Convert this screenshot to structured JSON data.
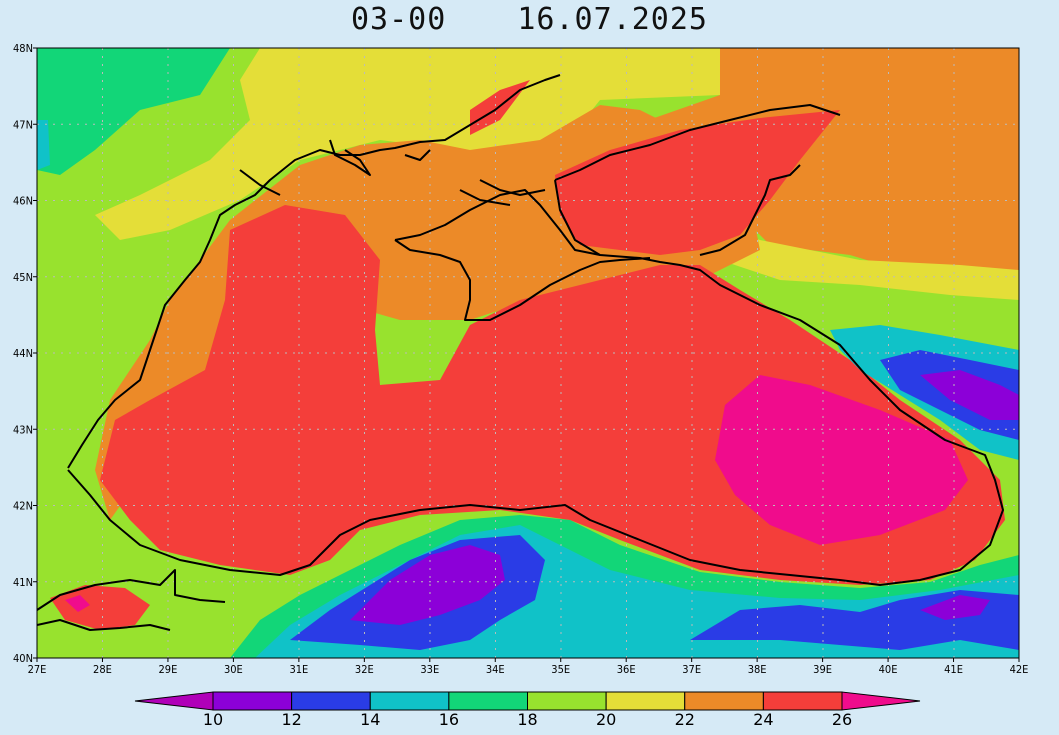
{
  "title": {
    "time": "03-00",
    "date": "16.07.2025"
  },
  "map_data": {
    "type": "sea_surface_temperature_map",
    "lon_range": [
      27,
      42
    ],
    "lat_range": [
      40,
      48
    ],
    "lon_ticks": [
      "27E",
      "28E",
      "29E",
      "30E",
      "31E",
      "32E",
      "33E",
      "34E",
      "35E",
      "36E",
      "37E",
      "38E",
      "39E",
      "40E",
      "41E",
      "42E"
    ],
    "lat_ticks": [
      "40N",
      "41N",
      "42N",
      "43N",
      "44N",
      "45N",
      "46N",
      "47N",
      "48N"
    ],
    "grid": true
  },
  "colorbar": {
    "tick_labels": [
      "10",
      "12",
      "14",
      "16",
      "18",
      "20",
      "22",
      "24",
      "26"
    ],
    "bands": [
      {
        "label": "<10",
        "color": "#b000b8"
      },
      {
        "label": "10-12",
        "color": "#8c00d8"
      },
      {
        "label": "12-14",
        "color": "#2a3ce6"
      },
      {
        "label": "14-16",
        "color": "#10c2c8"
      },
      {
        "label": "16-18",
        "color": "#12d678"
      },
      {
        "label": "18-20",
        "color": "#98e22e"
      },
      {
        "label": "20-22",
        "color": "#e4de38"
      },
      {
        "label": "22-24",
        "color": "#ec8a28"
      },
      {
        "label": "24-26",
        "color": "#f43e3a"
      },
      {
        "label": ">26",
        "color": "#f00c8c"
      }
    ]
  }
}
